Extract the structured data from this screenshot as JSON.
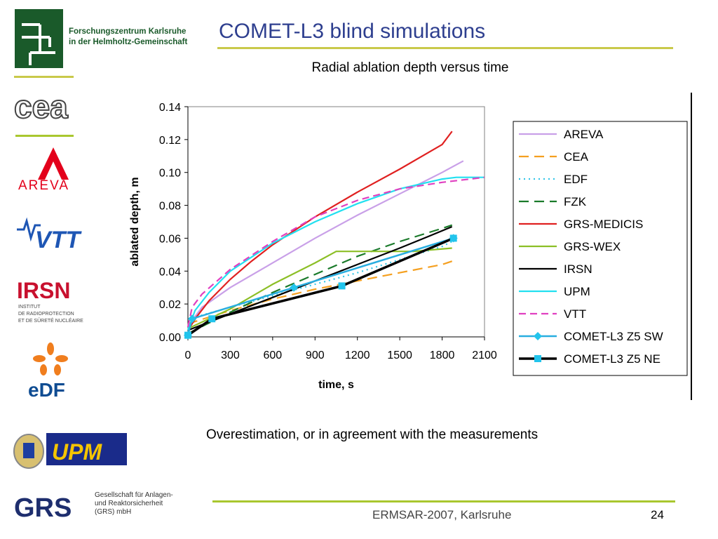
{
  "slide": {
    "title": "COMET-L3 blind simulations",
    "note": "Overestimation, or in agreement with the measurements",
    "footer": "ERMSAR-2007, Karlsruhe",
    "page_number": "24"
  },
  "logos": {
    "fzk_line1": "Forschungszentrum Karlsruhe",
    "fzk_line2": "in der Helmholtz-Gemeinschaft",
    "cea": "cea",
    "areva": "AREVA",
    "vtt": "VTT",
    "irsn": "IRSN",
    "irsn_sub1": "INSTITUT",
    "irsn_sub2": "DE RADIOPROTECTION",
    "irsn_sub3": "ET DE SÛRETÉ NUCLÉAIRE",
    "edf": "eDF",
    "upm": "UPM",
    "grs": "GRS",
    "grs_line1": "Gesellschaft für Anlagen-",
    "grs_line2": "und Reaktorsicherheit",
    "grs_line3": "(GRS) mbH"
  },
  "chart_data": {
    "type": "line",
    "title": "Radial ablation depth versus time",
    "xlabel": "time, s",
    "ylabel": "ablated depth, m",
    "xlim": [
      0,
      2100
    ],
    "ylim": [
      0,
      0.14
    ],
    "x_ticks": [
      "0",
      "300",
      "600",
      "900",
      "1200",
      "1500",
      "1800",
      "2100"
    ],
    "y_ticks": [
      "0.00",
      "0.02",
      "0.04",
      "0.06",
      "0.08",
      "0.10",
      "0.12",
      "0.14"
    ],
    "legend_position": "right",
    "grid": false,
    "series": [
      {
        "name": "AREVA",
        "color": "#c9a0e8",
        "dash": "solid",
        "x": [
          0,
          30,
          100,
          300,
          600,
          900,
          1200,
          1500,
          1800,
          1950
        ],
        "y": [
          0.002,
          0.01,
          0.018,
          0.03,
          0.045,
          0.06,
          0.074,
          0.087,
          0.1,
          0.107
        ]
      },
      {
        "name": "CEA",
        "color": "#f5a020",
        "dash": "long",
        "x": [
          0,
          300,
          600,
          900,
          1200,
          1500,
          1800,
          1870
        ],
        "y": [
          0.008,
          0.016,
          0.023,
          0.029,
          0.034,
          0.039,
          0.044,
          0.046
        ]
      },
      {
        "name": "EDF",
        "color": "#33c6e8",
        "dash": "dot",
        "x": [
          0,
          50,
          300,
          600,
          900,
          1200,
          1500,
          1800,
          1870
        ],
        "y": [
          0.005,
          0.012,
          0.018,
          0.025,
          0.032,
          0.039,
          0.047,
          0.055,
          0.058
        ]
      },
      {
        "name": "FZK",
        "color": "#1a7a2a",
        "dash": "long",
        "x": [
          0,
          300,
          600,
          900,
          1200,
          1500,
          1800,
          1870
        ],
        "y": [
          0.002,
          0.015,
          0.027,
          0.038,
          0.049,
          0.058,
          0.066,
          0.068
        ]
      },
      {
        "name": "GRS-MEDICIS",
        "color": "#e02020",
        "dash": "solid",
        "x": [
          0,
          60,
          150,
          300,
          450,
          600,
          900,
          1200,
          1500,
          1800,
          1870
        ],
        "y": [
          0.004,
          0.012,
          0.022,
          0.035,
          0.046,
          0.056,
          0.073,
          0.088,
          0.102,
          0.117,
          0.125
        ]
      },
      {
        "name": "GRS-WEX",
        "color": "#8cbf26",
        "dash": "solid",
        "x": [
          0,
          300,
          600,
          900,
          1050,
          1300,
          1600,
          1870
        ],
        "y": [
          0.005,
          0.017,
          0.032,
          0.045,
          0.052,
          0.052,
          0.052,
          0.054
        ]
      },
      {
        "name": "IRSN",
        "color": "#000000",
        "dash": "solid",
        "x": [
          0,
          300,
          600,
          900,
          1200,
          1500,
          1700,
          1870
        ],
        "y": [
          0.004,
          0.014,
          0.024,
          0.034,
          0.044,
          0.054,
          0.061,
          0.067
        ]
      },
      {
        "name": "UPM",
        "color": "#22e0f0",
        "dash": "solid",
        "x": [
          0,
          50,
          150,
          300,
          600,
          900,
          1200,
          1500,
          1800,
          1900,
          2100
        ],
        "y": [
          0.004,
          0.016,
          0.027,
          0.04,
          0.057,
          0.07,
          0.081,
          0.09,
          0.096,
          0.097,
          0.097
        ]
      },
      {
        "name": "VTT",
        "color": "#e040c0",
        "dash": "dash",
        "x": [
          0,
          30,
          100,
          300,
          600,
          900,
          1200,
          1500,
          1800,
          2100
        ],
        "y": [
          0.006,
          0.018,
          0.026,
          0.041,
          0.058,
          0.073,
          0.083,
          0.09,
          0.094,
          0.097
        ]
      },
      {
        "name": "COMET-L3 Z5 SW",
        "color": "#29aee0",
        "dash": "solid",
        "marker": "diamond",
        "x": [
          0,
          30,
          750,
          1880
        ],
        "y": [
          0.001,
          0.011,
          0.03,
          0.06
        ]
      },
      {
        "name": "COMET-L3 Z5 NE",
        "color": "#000000",
        "dash": "solid",
        "marker": "square",
        "x": [
          0,
          170,
          1090,
          1880
        ],
        "y": [
          0.001,
          0.011,
          0.031,
          0.06
        ]
      }
    ]
  }
}
